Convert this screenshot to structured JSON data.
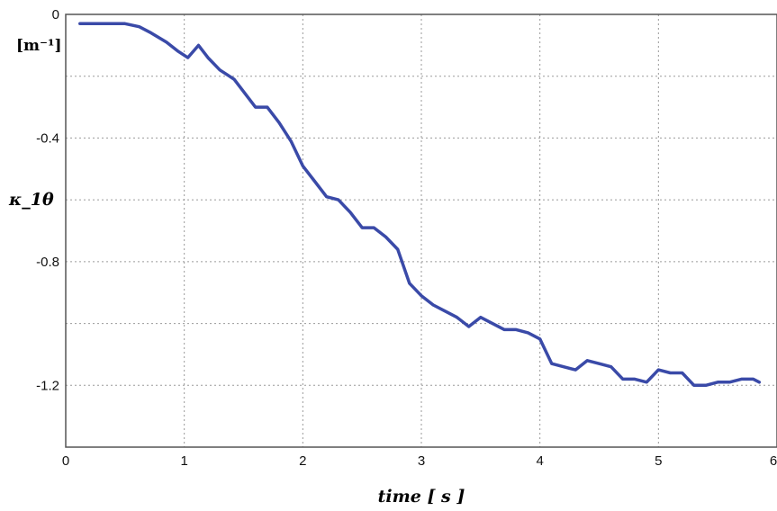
{
  "chart_data": {
    "type": "line",
    "title": "",
    "xlabel": "time [ s ]",
    "ylabel": "κ_1θ",
    "y_unit": "[m⁻¹]",
    "xlim": [
      0,
      6
    ],
    "ylim": [
      -1.4,
      0
    ],
    "xticks": [
      0,
      1,
      2,
      3,
      4,
      5,
      6
    ],
    "xtick_labels": [
      "0",
      "1",
      "2",
      "3",
      "4",
      "5",
      "6"
    ],
    "yticks": [
      0,
      -0.2,
      -0.4,
      -0.6,
      -0.8,
      -1.0,
      -1.2,
      -1.4
    ],
    "ytick_labels": [
      "0",
      "",
      "-0.4",
      "",
      "-0.8",
      "",
      "-1.2",
      ""
    ],
    "grid": true,
    "line_color": "#3a4aa8",
    "series": [
      {
        "x": [
          0.12,
          0.5,
          0.62,
          0.72,
          0.85,
          0.95,
          1.03,
          1.12,
          1.2,
          1.3,
          1.42,
          1.6,
          1.7,
          1.8,
          1.9,
          2.0,
          2.1,
          2.2,
          2.3,
          2.4,
          2.5,
          2.6,
          2.7,
          2.8,
          2.9,
          3.0,
          3.1,
          3.2,
          3.3,
          3.4,
          3.5,
          3.6,
          3.7,
          3.8,
          3.9,
          4.0,
          4.1,
          4.2,
          4.3,
          4.4,
          4.5,
          4.6,
          4.7,
          4.8,
          4.9,
          5.0,
          5.1,
          5.2,
          5.3,
          5.4,
          5.5,
          5.6,
          5.7,
          5.8,
          5.85
        ],
        "y": [
          -0.03,
          -0.03,
          -0.04,
          -0.06,
          -0.09,
          -0.12,
          -0.14,
          -0.1,
          -0.14,
          -0.18,
          -0.21,
          -0.3,
          -0.3,
          -0.35,
          -0.41,
          -0.49,
          -0.54,
          -0.59,
          -0.6,
          -0.64,
          -0.69,
          -0.69,
          -0.72,
          -0.76,
          -0.87,
          -0.91,
          -0.94,
          -0.96,
          -0.98,
          -1.01,
          -0.98,
          -1.0,
          -1.02,
          -1.02,
          -1.03,
          -1.05,
          -1.13,
          -1.14,
          -1.15,
          -1.12,
          -1.13,
          -1.14,
          -1.18,
          -1.18,
          -1.19,
          -1.15,
          -1.16,
          -1.16,
          -1.2,
          -1.2,
          -1.19,
          -1.19,
          -1.18,
          -1.18,
          -1.19
        ]
      }
    ]
  }
}
